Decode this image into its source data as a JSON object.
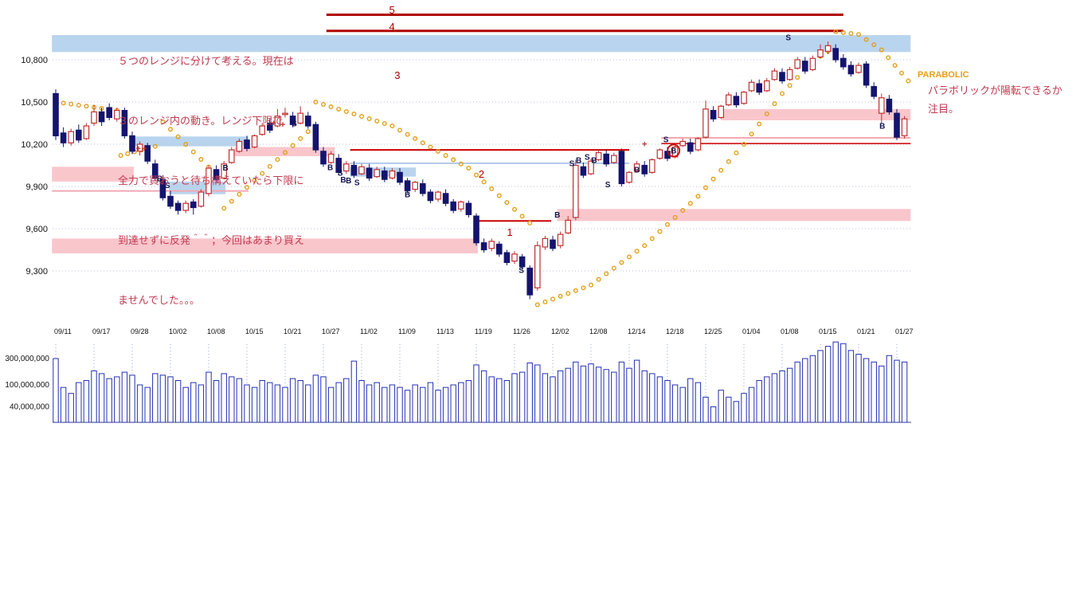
{
  "annotations": {
    "note_lines": [
      "５つのレンジに分けて考える。現在は",
      "３のレンジ内の動き。レンジ下限で",
      "全力で買おうと待ち構えていたら下限に",
      "到達せずに反発＾＾；今回はあまり買え",
      "ませんでした。。。"
    ],
    "parabolic_label": "PARABOLIC",
    "right_note_lines": [
      "パラボリックが陽転できるか",
      "注目。"
    ]
  },
  "chart_data": {
    "type": "candlestick+volume",
    "title": "",
    "colors": {
      "up": "#c03030",
      "down": "#14146e",
      "sar": "#e0a018",
      "band_pink": "#f9c6cc",
      "band_blue": "#b9d4ee",
      "volume": "#2430b0",
      "grid": "#b9c2d8"
    },
    "price_axis": {
      "values": [
        10800,
        10500,
        10200,
        9900,
        9600,
        9300
      ],
      "labels": [
        "10,800",
        "10,500",
        "10,200",
        "9,900",
        "9,600",
        "9,300"
      ]
    },
    "volume_axis": {
      "values": [
        300,
        100,
        40
      ],
      "labels": [
        "300,000,000",
        "100,000,000",
        "40,000,000"
      ]
    },
    "bars_per_tick": 5,
    "date_ticks": [
      "09/11",
      "09/17",
      "09/28",
      "10/02",
      "10/08",
      "10/15",
      "10/21",
      "10/27",
      "11/02",
      "11/09",
      "11/13",
      "11/19",
      "11/26",
      "12/02",
      "12/08",
      "12/14",
      "12/18",
      "12/25",
      "01/04",
      "01/08",
      "01/15",
      "01/21",
      "01/27"
    ],
    "candles": [
      [
        10560,
        10590,
        10230,
        10260
      ],
      [
        10280,
        10320,
        10180,
        10210
      ],
      [
        10210,
        10310,
        10190,
        10290
      ],
      [
        10300,
        10340,
        10210,
        10230
      ],
      [
        10240,
        10350,
        10230,
        10330
      ],
      [
        10350,
        10480,
        10330,
        10430
      ],
      [
        10430,
        10460,
        10330,
        10360
      ],
      [
        10460,
        10490,
        10370,
        10390
      ],
      [
        10380,
        10460,
        10360,
        10440
      ],
      [
        10440,
        10460,
        10240,
        10260
      ],
      [
        10260,
        10290,
        10130,
        10150
      ],
      [
        10150,
        10220,
        10120,
        10200
      ],
      [
        10190,
        10210,
        10060,
        10080
      ],
      [
        10060,
        10090,
        9940,
        9960
      ],
      [
        9950,
        9980,
        9800,
        9820
      ],
      [
        9830,
        9870,
        9740,
        9760
      ],
      [
        9780,
        9800,
        9700,
        9730
      ],
      [
        9730,
        9800,
        9710,
        9780
      ],
      [
        9790,
        9810,
        9700,
        9750
      ],
      [
        9760,
        9880,
        9750,
        9860
      ],
      [
        9850,
        10050,
        9830,
        10030
      ],
      [
        10020,
        10050,
        9930,
        9950
      ],
      [
        9960,
        10080,
        9950,
        10060
      ],
      [
        10070,
        10180,
        10060,
        10160
      ],
      [
        10150,
        10240,
        10140,
        10220
      ],
      [
        10230,
        10260,
        10150,
        10170
      ],
      [
        10180,
        10270,
        10170,
        10260
      ],
      [
        10270,
        10350,
        10260,
        10330
      ],
      [
        10350,
        10380,
        10280,
        10300
      ],
      [
        10330,
        10450,
        10320,
        10400
      ],
      [
        10420,
        10460,
        10390,
        10420
      ],
      [
        10400,
        10430,
        10320,
        10340
      ],
      [
        10350,
        10470,
        10340,
        10420
      ],
      [
        10400,
        10430,
        10310,
        10330
      ],
      [
        10340,
        10360,
        10140,
        10160
      ],
      [
        10150,
        10180,
        10040,
        10060
      ],
      [
        10070,
        10150,
        10060,
        10130
      ],
      [
        10100,
        10130,
        9980,
        10000
      ],
      [
        10010,
        10080,
        9990,
        10060
      ],
      [
        10050,
        10080,
        9960,
        9980
      ],
      [
        9990,
        10060,
        9980,
        10040
      ],
      [
        10030,
        10060,
        9940,
        9960
      ],
      [
        9970,
        10040,
        9960,
        10020
      ],
      [
        10010,
        10040,
        9930,
        9950
      ],
      [
        9960,
        10030,
        9950,
        10010
      ],
      [
        10000,
        10030,
        9910,
        9930
      ],
      [
        9940,
        9960,
        9850,
        9870
      ],
      [
        9880,
        9940,
        9860,
        9930
      ],
      [
        9920,
        9950,
        9830,
        9850
      ],
      [
        9860,
        9880,
        9780,
        9800
      ],
      [
        9810,
        9870,
        9790,
        9860
      ],
      [
        9850,
        9880,
        9760,
        9780
      ],
      [
        9790,
        9810,
        9710,
        9730
      ],
      [
        9740,
        9800,
        9720,
        9790
      ],
      [
        9780,
        9800,
        9680,
        9700
      ],
      [
        9690,
        9710,
        9480,
        9500
      ],
      [
        9500,
        9530,
        9430,
        9450
      ],
      [
        9460,
        9530,
        9440,
        9510
      ],
      [
        9490,
        9510,
        9400,
        9420
      ],
      [
        9430,
        9450,
        9340,
        9360
      ],
      [
        9370,
        9440,
        9350,
        9420
      ],
      [
        9400,
        9420,
        9310,
        9330
      ],
      [
        9320,
        9340,
        9100,
        9130
      ],
      [
        9180,
        9510,
        9160,
        9480
      ],
      [
        9470,
        9550,
        9450,
        9530
      ],
      [
        9520,
        9550,
        9440,
        9460
      ],
      [
        9480,
        9580,
        9460,
        9560
      ],
      [
        9570,
        9690,
        9560,
        9660
      ],
      [
        9680,
        10090,
        9660,
        10050
      ],
      [
        10040,
        10070,
        9960,
        9980
      ],
      [
        9990,
        10100,
        9980,
        10080
      ],
      [
        10090,
        10160,
        10080,
        10140
      ],
      [
        10130,
        10160,
        10040,
        10060
      ],
      [
        10070,
        10140,
        10060,
        10120
      ],
      [
        10150,
        10170,
        9900,
        9920
      ],
      [
        9930,
        10010,
        9920,
        10000
      ],
      [
        10010,
        10080,
        10000,
        10060
      ],
      [
        10050,
        10080,
        9970,
        9990
      ],
      [
        10000,
        10100,
        9990,
        10090
      ],
      [
        10100,
        10170,
        10090,
        10160
      ],
      [
        10150,
        10180,
        10080,
        10100
      ],
      [
        10110,
        10190,
        10100,
        10180
      ],
      [
        10190,
        10240,
        10180,
        10220
      ],
      [
        10210,
        10240,
        10130,
        10150
      ],
      [
        10160,
        10250,
        10150,
        10240
      ],
      [
        10250,
        10510,
        10240,
        10450
      ],
      [
        10440,
        10470,
        10360,
        10380
      ],
      [
        10390,
        10480,
        10380,
        10470
      ],
      [
        10480,
        10570,
        10470,
        10550
      ],
      [
        10540,
        10570,
        10460,
        10480
      ],
      [
        10490,
        10580,
        10480,
        10570
      ],
      [
        10580,
        10660,
        10570,
        10640
      ],
      [
        10630,
        10660,
        10550,
        10570
      ],
      [
        10580,
        10670,
        10570,
        10650
      ],
      [
        10660,
        10740,
        10650,
        10720
      ],
      [
        10710,
        10740,
        10630,
        10650
      ],
      [
        10660,
        10750,
        10650,
        10730
      ],
      [
        10740,
        10820,
        10730,
        10800
      ],
      [
        10790,
        10820,
        10700,
        10720
      ],
      [
        10730,
        10830,
        10720,
        10810
      ],
      [
        10820,
        10910,
        10810,
        10870
      ],
      [
        10860,
        10930,
        10840,
        10900
      ],
      [
        10880,
        10910,
        10780,
        10800
      ],
      [
        10810,
        10840,
        10730,
        10750
      ],
      [
        10760,
        10790,
        10680,
        10700
      ],
      [
        10710,
        10780,
        10700,
        10760
      ],
      [
        10770,
        10790,
        10600,
        10620
      ],
      [
        10610,
        10640,
        10520,
        10540
      ],
      [
        10420,
        10560,
        10350,
        10530
      ],
      [
        10520,
        10550,
        10410,
        10430
      ],
      [
        10420,
        10450,
        10230,
        10250
      ],
      [
        10260,
        10400,
        10240,
        10380
      ]
    ],
    "volumes": [
      300,
      90,
      70,
      110,
      120,
      180,
      160,
      130,
      140,
      170,
      150,
      100,
      90,
      160,
      150,
      140,
      120,
      90,
      110,
      100,
      170,
      120,
      160,
      140,
      130,
      100,
      90,
      120,
      110,
      100,
      90,
      130,
      120,
      100,
      150,
      140,
      90,
      110,
      130,
      270,
      120,
      100,
      110,
      90,
      100,
      90,
      80,
      100,
      90,
      110,
      80,
      90,
      100,
      110,
      120,
      230,
      180,
      140,
      130,
      120,
      160,
      170,
      250,
      230,
      160,
      140,
      180,
      200,
      260,
      220,
      240,
      210,
      190,
      170,
      260,
      200,
      280,
      180,
      160,
      140,
      120,
      100,
      90,
      130,
      110,
      60,
      40,
      80,
      60,
      50,
      70,
      90,
      120,
      140,
      160,
      180,
      200,
      260,
      300,
      340,
      420,
      500,
      600,
      560,
      420,
      360,
      300,
      260,
      220,
      340,
      280,
      260
    ],
    "sar_chains": [
      [
        [
          0,
          10500
        ],
        [
          8,
          10440
        ]
      ],
      [
        [
          8.5,
          10120
        ],
        [
          13,
          10185
        ]
      ],
      [
        [
          14,
          10360
        ],
        [
          21,
          9985
        ]
      ],
      [
        [
          22,
          9745
        ],
        [
          33,
          10290
        ]
      ],
      [
        [
          34,
          10500
        ],
        [
          44,
          10330
        ],
        [
          54,
          10030
        ],
        [
          62,
          9640
        ]
      ],
      [
        [
          63,
          9060
        ],
        [
          70,
          9200
        ],
        [
          77,
          9480
        ],
        [
          84,
          9830
        ],
        [
          90,
          10200
        ],
        [
          95,
          10560
        ],
        [
          99,
          10790
        ],
        [
          101,
          10860
        ]
      ],
      [
        [
          102,
          11000
        ],
        [
          105,
          10980
        ],
        [
          108,
          10870
        ],
        [
          111.5,
          10650
        ]
      ]
    ],
    "bands": [
      {
        "b0": -0.5,
        "b1": 111.8,
        "p0": 10855,
        "p1": 10975,
        "c": "blue"
      },
      {
        "b0": -0.5,
        "b1": 10.2,
        "p0": 9935,
        "p1": 10040,
        "c": "pink"
      },
      {
        "b0": -0.5,
        "b1": 55.2,
        "p0": 9425,
        "p1": 9530,
        "c": "pink"
      },
      {
        "b0": 10.2,
        "b1": 25.2,
        "p0": 10185,
        "p1": 10255,
        "c": "blue"
      },
      {
        "b0": 14.8,
        "b1": 22.2,
        "p0": 9845,
        "p1": 9935,
        "c": "blue"
      },
      {
        "b0": 23.4,
        "b1": 36.5,
        "p0": 10115,
        "p1": 10180,
        "c": "pink"
      },
      {
        "b0": 38.5,
        "b1": 47.1,
        "p0": 9970,
        "p1": 10035,
        "c": "blue"
      },
      {
        "b0": 65.6,
        "b1": 111.8,
        "p0": 9655,
        "p1": 9740,
        "c": "pink"
      },
      {
        "b0": 87,
        "b1": 111.8,
        "p0": 10370,
        "p1": 10450,
        "c": "pink"
      }
    ],
    "hlines": [
      {
        "b0": 35.4,
        "b1": 103,
        "p": 11120,
        "c": "#b00000",
        "w": 3
      },
      {
        "b0": 35.4,
        "b1": 103,
        "p": 11005,
        "c": "#b00000",
        "w": 3
      },
      {
        "b0": -0.5,
        "b1": 25.2,
        "p": 9868,
        "c": "#f2a9b4",
        "w": 2
      },
      {
        "b0": 38.5,
        "b1": 75,
        "p": 10160,
        "c": "#cc0000",
        "w": 2
      },
      {
        "b0": 38.5,
        "b1": 75,
        "p": 10065,
        "c": "#9cb8e6",
        "w": 1.5
      },
      {
        "b0": 55.2,
        "b1": 64.8,
        "p": 9655,
        "c": "#cc0000",
        "w": 2
      },
      {
        "b0": 79.2,
        "b1": 111.8,
        "p": 10245,
        "c": "#f2a9b4",
        "w": 2
      },
      {
        "b0": 79.2,
        "b1": 111.8,
        "p": 10205,
        "c": "#cc0000",
        "w": 1.5
      }
    ],
    "range_labels": [
      {
        "t": "5",
        "b": 43.6,
        "p": 11150
      },
      {
        "t": "4",
        "b": 43.6,
        "p": 11032
      },
      {
        "t": "3",
        "b": 44.3,
        "p": 10688
      },
      {
        "t": "2",
        "b": 55.3,
        "p": 9985
      },
      {
        "t": "1",
        "b": 59,
        "p": 9572
      }
    ],
    "signals": [
      {
        "t": "+",
        "b": 10.8,
        "p": 10168
      },
      {
        "t": "+",
        "b": 11.6,
        "p": 10168
      },
      {
        "t": "B",
        "b": 13.6,
        "p": 9958
      },
      {
        "t": "S",
        "b": 14.6,
        "p": 9908
      },
      {
        "t": "B",
        "b": 22.2,
        "p": 10032
      },
      {
        "t": "+",
        "b": 28.5,
        "p": 10350
      },
      {
        "t": "+",
        "b": 29.7,
        "p": 10338
      },
      {
        "t": "S",
        "b": 31.2,
        "p": 10348
      },
      {
        "t": "B",
        "b": 35.9,
        "p": 10035
      },
      {
        "t": "S",
        "b": 37.2,
        "p": 9995
      },
      {
        "t": "B",
        "b": 37.6,
        "p": 9948
      },
      {
        "t": "B",
        "b": 38.3,
        "p": 9943
      },
      {
        "t": "S",
        "b": 39.4,
        "p": 9928
      },
      {
        "t": "B",
        "b": 46,
        "p": 9843
      },
      {
        "t": "S",
        "b": 60.9,
        "p": 9305
      },
      {
        "t": "B",
        "b": 65.6,
        "p": 9700
      },
      {
        "t": "S",
        "b": 67.5,
        "p": 10065
      },
      {
        "t": "B",
        "b": 68.4,
        "p": 10088
      },
      {
        "t": "S",
        "b": 69.5,
        "p": 10110
      },
      {
        "t": "B",
        "b": 70.4,
        "p": 10088
      },
      {
        "t": "S",
        "b": 72.2,
        "p": 9915
      },
      {
        "t": "B",
        "b": 76,
        "p": 10020
      },
      {
        "t": "+",
        "b": 77,
        "p": 10200
      },
      {
        "t": "S",
        "b": 79.8,
        "p": 10235
      },
      {
        "t": "B",
        "b": 80.8,
        "p": 10155,
        "circled": true
      },
      {
        "t": "S",
        "b": 95.8,
        "p": 10958
      },
      {
        "t": "B",
        "b": 108.1,
        "p": 10330
      }
    ]
  }
}
